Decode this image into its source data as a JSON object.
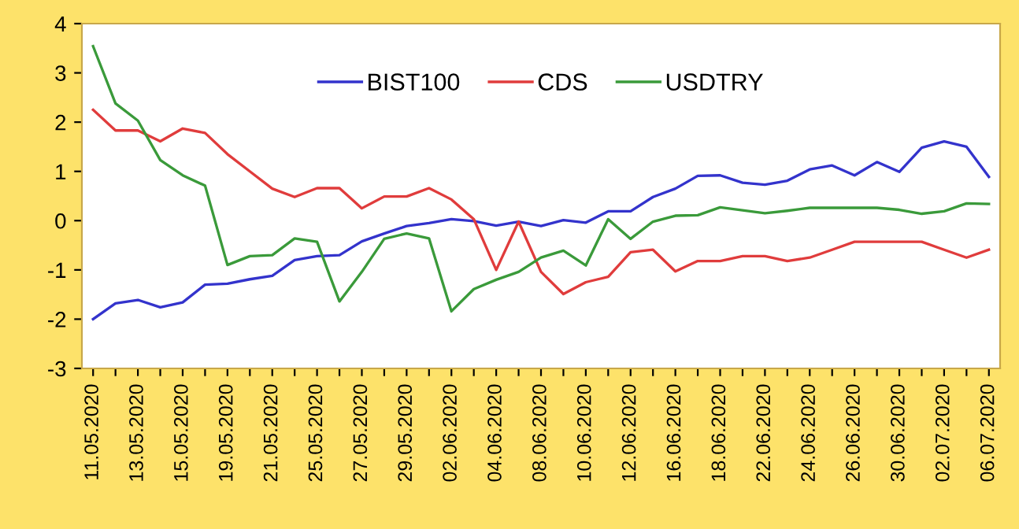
{
  "chart_data": {
    "type": "line",
    "categories": [
      "11.05.2020",
      null,
      "13.05.2020",
      null,
      "15.05.2020",
      null,
      "19.05.2020",
      null,
      "21.05.2020",
      null,
      "25.05.2020",
      null,
      "27.05.2020",
      null,
      "29.05.2020",
      null,
      "02.06.2020",
      null,
      "04.06.2020",
      null,
      "08.06.2020",
      null,
      "10.06.2020",
      null,
      "12.06.2020",
      null,
      "16.06.2020",
      null,
      "18.06.2020",
      null,
      "22.06.2020",
      null,
      "24.06.2020",
      null,
      "26.06.2020",
      null,
      "30.06.2020",
      null,
      "02.07.2020",
      null,
      "06.07.2020"
    ],
    "series": [
      {
        "name": "BIST100",
        "color": "#3333cc",
        "values": [
          -2.0,
          -1.68,
          -1.61,
          -1.76,
          -1.66,
          -1.3,
          -1.28,
          -1.19,
          -1.12,
          -0.8,
          -0.72,
          -0.7,
          -0.42,
          -0.26,
          -0.11,
          -0.05,
          0.03,
          -0.01,
          -0.1,
          -0.02,
          -0.11,
          0.01,
          -0.04,
          0.19,
          0.19,
          0.48,
          0.65,
          0.91,
          0.92,
          0.77,
          0.73,
          0.81,
          1.04,
          1.12,
          0.92,
          1.19,
          0.99,
          1.48,
          1.61,
          1.5,
          0.89
        ]
      },
      {
        "name": "CDS",
        "color": "#e03c3c",
        "values": [
          2.25,
          1.83,
          1.83,
          1.61,
          1.87,
          1.78,
          1.35,
          1.0,
          0.65,
          0.48,
          0.66,
          0.66,
          0.25,
          0.49,
          0.49,
          0.66,
          0.43,
          0.03,
          -1.0,
          -0.02,
          -1.04,
          -1.49,
          -1.25,
          -1.14,
          -0.64,
          -0.59,
          -1.03,
          -0.82,
          -0.82,
          -0.72,
          -0.72,
          -0.82,
          -0.75,
          -0.59,
          -0.43,
          -0.43,
          -0.43,
          -0.43,
          -0.59,
          -0.75,
          -0.59
        ]
      },
      {
        "name": "USDTRY",
        "color": "#3a9a3a",
        "values": [
          3.54,
          2.38,
          2.03,
          1.23,
          0.92,
          0.71,
          -0.9,
          -0.72,
          -0.7,
          -0.36,
          -0.43,
          -1.64,
          -1.04,
          -0.37,
          -0.26,
          -0.36,
          -1.84,
          -1.39,
          -1.2,
          -1.04,
          -0.75,
          -0.61,
          -0.91,
          0.03,
          -0.37,
          -0.02,
          0.1,
          0.11,
          0.27,
          0.21,
          0.15,
          0.2,
          0.26,
          0.26,
          0.26,
          0.26,
          0.22,
          0.14,
          0.19,
          0.35,
          0.34
        ]
      }
    ],
    "ylim": [
      -3,
      4
    ],
    "yticks": [
      -3,
      -2,
      -1,
      0,
      1,
      2,
      3,
      4
    ],
    "legend": "top",
    "grid": false,
    "line_style": "solid",
    "marker": "none"
  }
}
